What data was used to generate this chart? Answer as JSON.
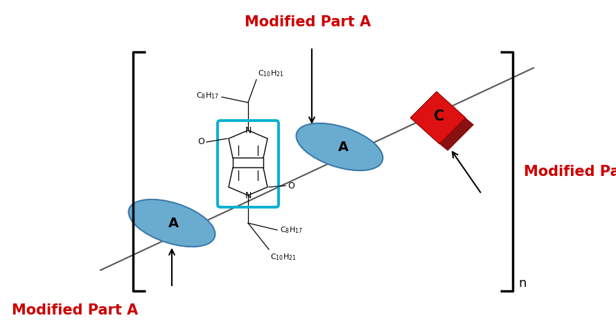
{
  "bg_color": "#ffffff",
  "title_top": "Modified Part A",
  "title_bottom_left": "Modified Part A",
  "title_right": "Modified Part C",
  "label_n": "n",
  "ellipse_color": "#6aacd0",
  "ellipse_edge_color": "#3a7aaa",
  "diamond_color": "#dd1111",
  "diamond_shadow_color": "#881111",
  "diamond_label": "C",
  "ellipse_label": "A",
  "bracket_color": "#000000",
  "cyan_box_color": "#00b0d0",
  "line_color": "#555555",
  "arrow_color": "#000000",
  "modified_a_color": "#cc0000",
  "modified_c_color": "#cc0000"
}
